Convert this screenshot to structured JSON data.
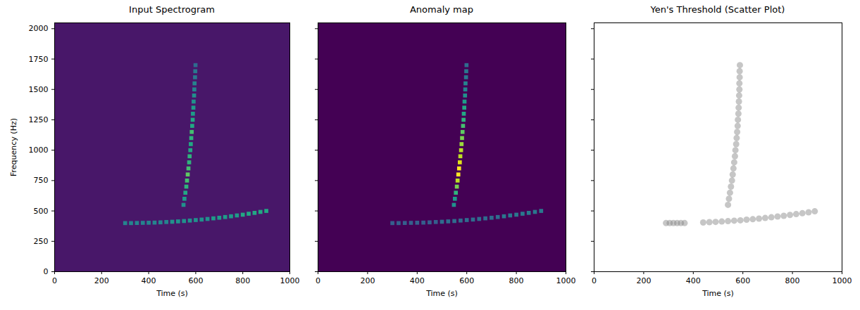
{
  "chart_data": [
    {
      "type": "heatmap",
      "title": "Input Spectrogram",
      "x_label": "Time (s)",
      "y_label": "Frequency (Hz)",
      "xlim": [
        0,
        1000
      ],
      "ylim": [
        0,
        2048
      ],
      "xticks": [
        0,
        200,
        400,
        600,
        800,
        1000
      ],
      "yticks": [
        0,
        250,
        500,
        750,
        1000,
        1250,
        1500,
        1750,
        2000
      ],
      "color_range": [
        0,
        1
      ],
      "cells": {
        "x": [
          548,
          552,
          556,
          560,
          563,
          566,
          569,
          572,
          574,
          577,
          579,
          581,
          583,
          585,
          587,
          588,
          590,
          591,
          593,
          594,
          595,
          597,
          598,
          599,
          300,
          325,
          350,
          375,
          400,
          425,
          450,
          475,
          500,
          525,
          550,
          575,
          600,
          625,
          650,
          675,
          700,
          725,
          750,
          775,
          800,
          825,
          850,
          875,
          900
        ],
        "y": [
          550,
          600,
          650,
          700,
          750,
          800,
          850,
          900,
          950,
          1000,
          1050,
          1100,
          1150,
          1200,
          1250,
          1300,
          1350,
          1400,
          1450,
          1500,
          1550,
          1600,
          1650,
          1700,
          400,
          400,
          401,
          402,
          403,
          404,
          406,
          409,
          411,
          414,
          417,
          421,
          425,
          429,
          434,
          439,
          444,
          450,
          456,
          463,
          469,
          477,
          484,
          492,
          500
        ],
        "values": [
          0.5,
          0.55,
          0.6,
          0.65,
          0.7,
          0.75,
          0.7,
          0.65,
          0.65,
          0.6,
          0.6,
          0.65,
          0.7,
          0.6,
          0.6,
          0.55,
          0.55,
          0.5,
          0.5,
          0.45,
          0.45,
          0.4,
          0.4,
          0.35,
          0.45,
          0.45,
          0.45,
          0.45,
          0.45,
          0.45,
          0.45,
          0.45,
          0.5,
          0.5,
          0.5,
          0.5,
          0.5,
          0.5,
          0.5,
          0.55,
          0.55,
          0.55,
          0.55,
          0.55,
          0.6,
          0.6,
          0.6,
          0.6,
          0.6
        ]
      }
    },
    {
      "type": "heatmap",
      "title": "Anomaly map",
      "x_label": "Time (s)",
      "tick_labels": "x",
      "xlim": [
        0,
        1000
      ],
      "ylim": [
        0,
        2048
      ],
      "xticks": [
        0,
        200,
        400,
        600,
        800,
        1000
      ],
      "yticks": [
        0,
        250,
        500,
        750,
        1000,
        1250,
        1500,
        1750,
        2000
      ],
      "color_range": [
        0,
        1
      ],
      "cells": {
        "x": [
          548,
          552,
          556,
          560,
          563,
          566,
          569,
          572,
          574,
          577,
          579,
          581,
          583,
          585,
          587,
          588,
          590,
          591,
          593,
          594,
          595,
          597,
          598,
          599,
          300,
          325,
          350,
          375,
          400,
          425,
          450,
          475,
          500,
          525,
          550,
          575,
          600,
          625,
          650,
          675,
          700,
          725,
          750,
          775,
          800,
          825,
          850,
          875,
          900
        ],
        "y": [
          550,
          600,
          650,
          700,
          750,
          800,
          850,
          900,
          950,
          1000,
          1050,
          1100,
          1150,
          1200,
          1250,
          1300,
          1350,
          1400,
          1450,
          1500,
          1550,
          1600,
          1650,
          1700,
          400,
          400,
          401,
          402,
          403,
          404,
          406,
          409,
          411,
          414,
          417,
          421,
          425,
          429,
          434,
          439,
          444,
          450,
          456,
          463,
          469,
          477,
          484,
          492,
          500
        ],
        "values": [
          0.5,
          0.55,
          0.65,
          0.8,
          0.9,
          1.0,
          1.0,
          0.95,
          0.9,
          0.9,
          0.85,
          0.8,
          0.75,
          0.7,
          0.65,
          0.6,
          0.6,
          0.55,
          0.5,
          0.45,
          0.45,
          0.4,
          0.4,
          0.35,
          0.3,
          0.3,
          0.3,
          0.3,
          0.3,
          0.3,
          0.3,
          0.3,
          0.35,
          0.35,
          0.35,
          0.35,
          0.35,
          0.35,
          0.35,
          0.35,
          0.35,
          0.35,
          0.4,
          0.4,
          0.4,
          0.4,
          0.4,
          0.4,
          0.4
        ]
      }
    },
    {
      "type": "scatter",
      "title": "Yen's Threshold (Scatter Plot)",
      "x_label": "Time (s)",
      "tick_labels": "x",
      "xlim": [
        0,
        1000
      ],
      "ylim": [
        0,
        2048
      ],
      "xticks": [
        0,
        200,
        400,
        600,
        800,
        1000
      ],
      "yticks": [
        0,
        250,
        500,
        750,
        1000,
        1250,
        1500,
        1750,
        2000
      ],
      "color": "gray",
      "marker": "circle",
      "x": [
        540,
        544,
        548,
        552,
        556,
        559,
        562,
        565,
        568,
        570,
        573,
        575,
        577,
        579,
        580,
        582,
        583,
        584,
        585,
        586,
        586,
        587,
        587,
        588,
        290,
        305,
        320,
        335,
        350,
        365,
        440,
        465,
        490,
        515,
        540,
        565,
        590,
        615,
        640,
        665,
        690,
        715,
        740,
        765,
        790,
        815,
        840,
        865,
        890
      ],
      "y": [
        550,
        600,
        650,
        700,
        750,
        800,
        850,
        900,
        950,
        1000,
        1050,
        1100,
        1150,
        1200,
        1250,
        1300,
        1350,
        1400,
        1450,
        1500,
        1550,
        1600,
        1650,
        1700,
        400,
        400,
        400,
        400,
        400,
        400,
        405,
        408,
        410,
        413,
        416,
        420,
        423,
        428,
        432,
        437,
        442,
        448,
        454,
        460,
        467,
        474,
        481,
        489,
        497
      ]
    }
  ]
}
